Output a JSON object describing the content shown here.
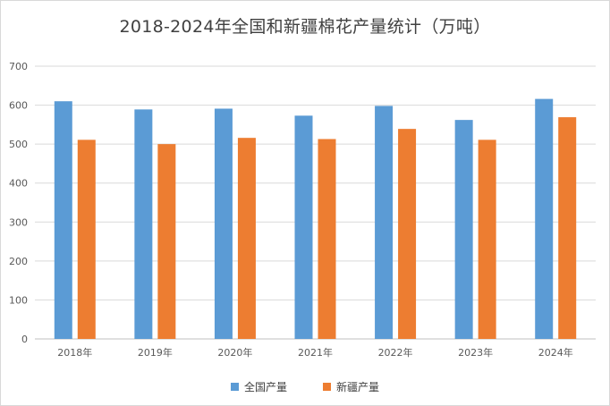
{
  "chart_data": {
    "type": "bar",
    "title": "2018-2024年全国和新疆棉花产量统计（万吨）",
    "categories": [
      "2018年",
      "2019年",
      "2020年",
      "2021年",
      "2022年",
      "2023年",
      "2024年"
    ],
    "series": [
      {
        "name": "全国产量",
        "color": "#5b9bd5",
        "values": [
          610,
          589,
          591,
          573,
          598,
          562,
          616
        ]
      },
      {
        "name": "新疆产量",
        "color": "#ed7d31",
        "values": [
          511,
          500,
          516,
          513,
          539,
          511,
          569
        ]
      }
    ],
    "ylim": [
      0,
      700
    ],
    "yticks": [
      0,
      100,
      200,
      300,
      400,
      500,
      600,
      700
    ],
    "grid": true,
    "legend_position": "bottom",
    "xlabel": "",
    "ylabel": ""
  }
}
